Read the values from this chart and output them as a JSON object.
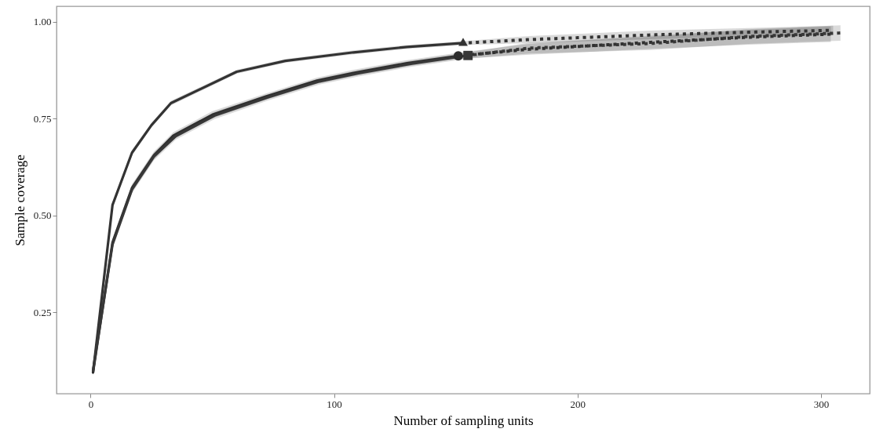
{
  "chart_data": {
    "type": "line",
    "xlabel": "Number of sampling units",
    "ylabel": "Sample coverage",
    "xlim": [
      -14,
      320
    ],
    "xticks": [
      0,
      100,
      200,
      300
    ],
    "ylim": [
      0.04,
      1.04
    ],
    "yticks": [
      0.25,
      {
        "value": 0.5,
        "label": "0.50"
      },
      0.75,
      {
        "value": 1,
        "label": "1.00"
      }
    ],
    "grid": false,
    "series": [
      {
        "color": "#333333",
        "line_style": "solid",
        "x": [
          1,
          9,
          17,
          25,
          33,
          60,
          80,
          108,
          130,
          153
        ],
        "values": [
          0.095,
          0.527,
          0.662,
          0.733,
          0.79,
          0.871,
          0.899,
          0.921,
          0.935,
          0.945
        ],
        "lower": [
          0.09,
          0.52,
          0.655,
          0.727,
          0.784,
          0.866,
          0.894,
          0.916,
          0.93,
          0.94
        ],
        "upper": [
          0.1,
          0.534,
          0.669,
          0.739,
          0.796,
          0.876,
          0.904,
          0.926,
          0.94,
          0.95
        ]
      },
      {
        "color": "#343434",
        "line_style": "dotted",
        "x": [
          153,
          180,
          230,
          270,
          305
        ],
        "values": [
          0.945,
          0.954,
          0.966,
          0.973,
          0.978
        ],
        "lower": [
          0.94,
          0.945,
          0.955,
          0.962,
          0.966
        ],
        "upper": [
          0.95,
          0.963,
          0.977,
          0.984,
          0.99
        ]
      },
      {
        "color": "#2e2e2e",
        "line_style": "solid",
        "x": [
          1,
          9,
          17,
          26,
          34,
          50,
          72,
          93,
          108,
          130,
          151
        ],
        "values": [
          0.095,
          0.43,
          0.571,
          0.655,
          0.706,
          0.76,
          0.807,
          0.848,
          0.868,
          0.893,
          0.912
        ],
        "lower": [
          0.085,
          0.42,
          0.561,
          0.645,
          0.697,
          0.751,
          0.799,
          0.84,
          0.86,
          0.885,
          0.904
        ],
        "upper": [
          0.105,
          0.44,
          0.581,
          0.665,
          0.715,
          0.769,
          0.815,
          0.856,
          0.876,
          0.901,
          0.92
        ]
      },
      {
        "color": "#383838",
        "line_style": "solid",
        "x": [
          1,
          9,
          17,
          26,
          35,
          51,
          73,
          94,
          110,
          132,
          155
        ],
        "values": [
          0.1,
          0.425,
          0.567,
          0.652,
          0.705,
          0.758,
          0.805,
          0.846,
          0.867,
          0.892,
          0.913
        ],
        "lower": [
          0.09,
          0.415,
          0.557,
          0.642,
          0.696,
          0.749,
          0.797,
          0.838,
          0.859,
          0.884,
          0.905
        ],
        "upper": [
          0.11,
          0.435,
          0.577,
          0.662,
          0.714,
          0.767,
          0.813,
          0.854,
          0.875,
          0.9,
          0.921
        ]
      },
      {
        "color": "#2f2f2f",
        "line_style": "dotted",
        "x": [
          151,
          180,
          230,
          270,
          304
        ],
        "values": [
          0.912,
          0.929,
          0.947,
          0.96,
          0.968
        ],
        "lower": [
          0.904,
          0.915,
          0.93,
          0.941,
          0.948
        ],
        "upper": [
          0.92,
          0.943,
          0.964,
          0.979,
          0.988
        ]
      },
      {
        "color": "#393939",
        "line_style": "dotted",
        "x": [
          155,
          180,
          230,
          270,
          308
        ],
        "values": [
          0.913,
          0.932,
          0.944,
          0.962,
          0.971
        ],
        "lower": [
          0.905,
          0.918,
          0.927,
          0.943,
          0.951
        ],
        "upper": [
          0.921,
          0.946,
          0.961,
          0.981,
          0.991
        ]
      },
      {
        "type": "scatter",
        "color": "#323232",
        "marker": "triangle",
        "x": [
          153
        ],
        "values": [
          0.948
        ]
      },
      {
        "type": "scatter",
        "color": "#2d2d2d",
        "marker": "circle",
        "x": [
          151
        ],
        "values": [
          0.912
        ]
      },
      {
        "type": "scatter",
        "color": "#373737",
        "marker": "square",
        "x": [
          155
        ],
        "values": [
          0.913
        ]
      }
    ]
  }
}
